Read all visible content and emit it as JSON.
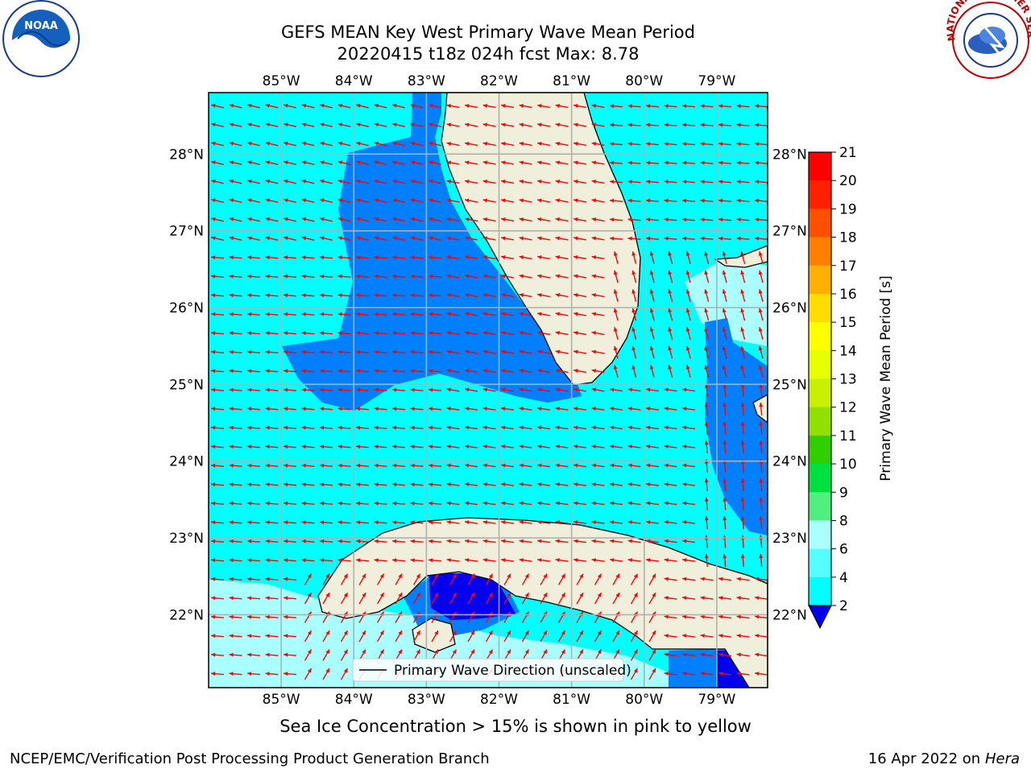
{
  "title_line1": "GEFS MEAN Key West Primary Wave Mean Period",
  "title_line2": "20220415 t18z 024h fcst   Max: 8.78",
  "lon_labels": [
    "85°W",
    "84°W",
    "83°W",
    "82°W",
    "81°W",
    "80°W",
    "79°W"
  ],
  "lon_values": [
    -85,
    -84,
    -83,
    -82,
    -81,
    -80,
    -79
  ],
  "lat_labels": [
    "28°N",
    "27°N",
    "26°N",
    "25°N",
    "24°N",
    "23°N",
    "22°N"
  ],
  "lat_values": [
    28,
    27,
    26,
    25,
    24,
    23,
    22
  ],
  "map_extent": {
    "lon_min": -86,
    "lon_max": -78.3,
    "lat_min": 21.05,
    "lat_max": 28.8
  },
  "legend_label": "Primary Wave Direction (unscaled)",
  "colorbar": {
    "label": "Primary Wave Mean Period [s]",
    "ticks": [
      "21",
      "20",
      "19",
      "18",
      "17",
      "16",
      "15",
      "14",
      "13",
      "12",
      "11",
      "10",
      "9",
      "8",
      "6",
      "4",
      "2"
    ],
    "colors": [
      "#ff0000",
      "#ff2000",
      "#ff5000",
      "#ff8000",
      "#ffb000",
      "#ffdd00",
      "#ffff00",
      "#e8ff00",
      "#c8f000",
      "#90e000",
      "#30d000",
      "#00e040",
      "#50f080",
      "#aaffff",
      "#55ffff",
      "#00ffff",
      "#0090ff",
      "#0000ee"
    ],
    "extend_color": "#0000ee"
  },
  "field_colors": {
    "band_7_9": "#aaffff",
    "band_4_6": "#00ffff",
    "band_2_4": "#0080ff",
    "band_below_2": "#0000ee",
    "land": "#efefdc",
    "arrow": "#ff0000",
    "grid": "#b0b0b0"
  },
  "caption": "Sea Ice Concentration > 15% is shown in pink to yellow",
  "credit": "NCEP/EMC/Verification Post Processing Product Generation Branch",
  "date_text": "16 Apr 2022 on",
  "date_host": "Hera",
  "logos": {
    "left": "NOAA",
    "right_text": "NATIONAL WEATHER SERVICE"
  }
}
